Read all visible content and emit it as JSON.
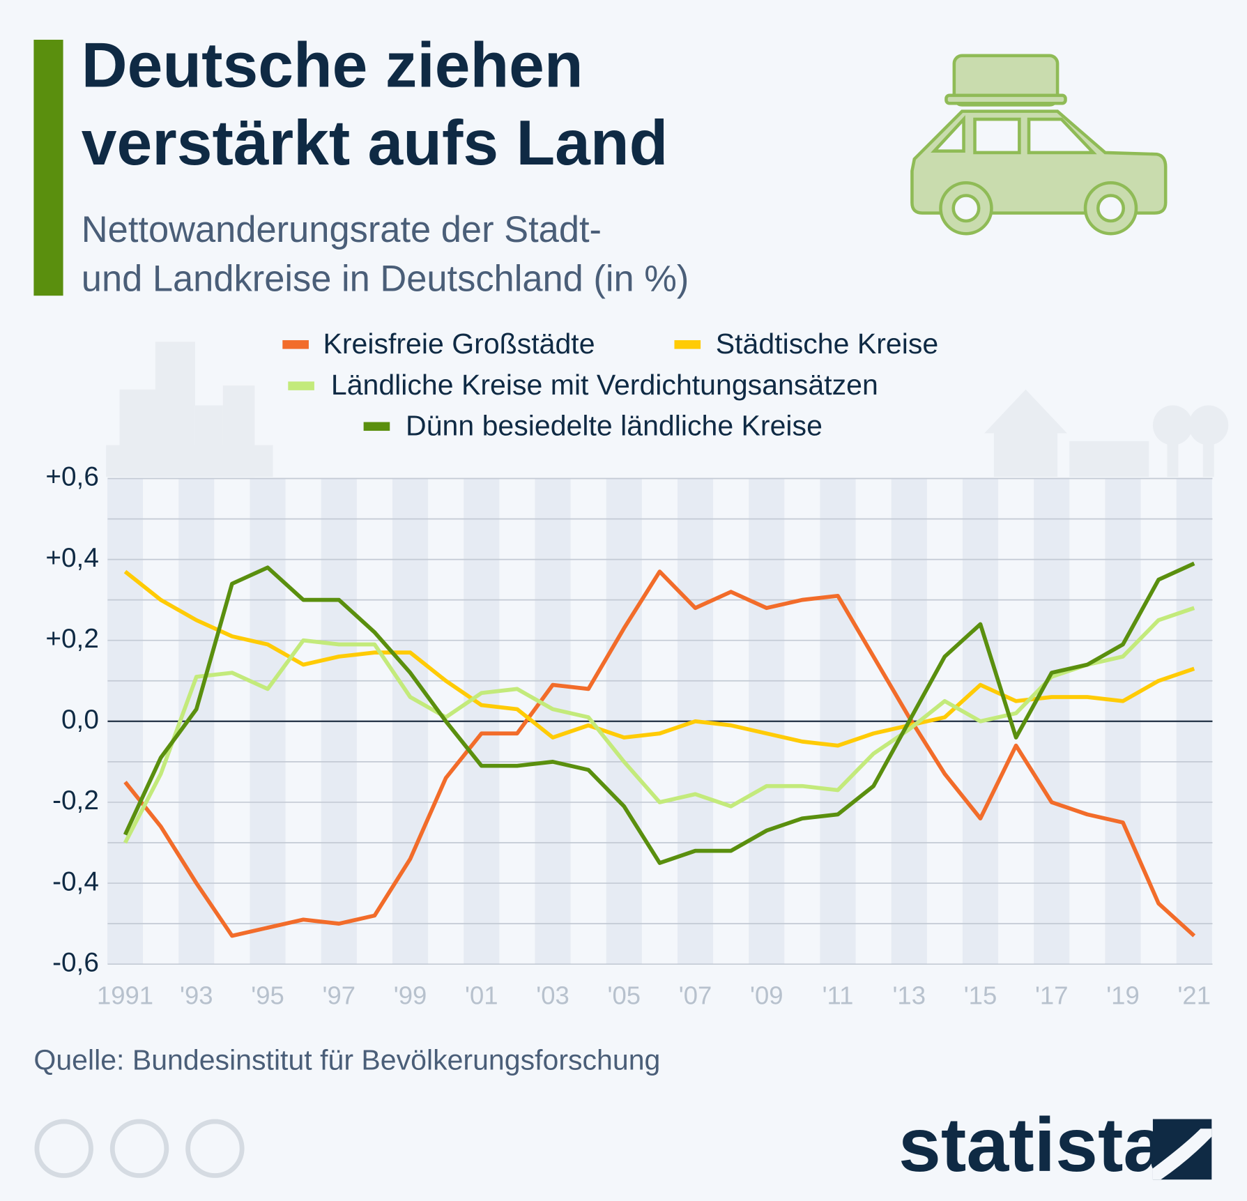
{
  "chart_data": {
    "type": "line",
    "title_lines": [
      "Deutsche ziehen",
      "verstärkt aufs Land"
    ],
    "subtitle_lines": [
      "Nettowanderungsrate der Stadt-",
      "und Landkreise in Deutschland (in %)"
    ],
    "categories": [
      "1991",
      null,
      "'93",
      null,
      "'95",
      null,
      "'97",
      null,
      "'99",
      null,
      "'01",
      null,
      "'03",
      null,
      "'05",
      null,
      "'07",
      null,
      "'09",
      null,
      "'11",
      null,
      "'13",
      null,
      "'15",
      null,
      "'17",
      null,
      "'19",
      null,
      "'21"
    ],
    "series": [
      {
        "name": "Kreisfreie Großstädte",
        "color": "#f26c2a",
        "values": [
          -0.15,
          -0.26,
          -0.4,
          -0.53,
          -0.51,
          -0.49,
          -0.5,
          -0.48,
          -0.34,
          -0.14,
          -0.03,
          -0.03,
          0.09,
          0.08,
          0.23,
          0.37,
          0.28,
          0.32,
          0.28,
          0.3,
          0.31,
          0.16,
          0.01,
          -0.13,
          -0.24,
          -0.06,
          -0.2,
          -0.23,
          -0.25,
          -0.45,
          -0.53
        ]
      },
      {
        "name": "Städtische Kreise",
        "color": "#ffcb05",
        "values": [
          0.37,
          0.3,
          0.25,
          0.21,
          0.19,
          0.14,
          0.16,
          0.17,
          0.17,
          0.1,
          0.04,
          0.03,
          -0.04,
          -0.01,
          -0.04,
          -0.03,
          0.0,
          -0.01,
          -0.03,
          -0.05,
          -0.06,
          -0.03,
          -0.01,
          0.01,
          0.09,
          0.05,
          0.06,
          0.06,
          0.05,
          0.1,
          0.13
        ]
      },
      {
        "name": "Ländliche Kreise mit Verdichtungsansätzen",
        "color": "#c3ea7b",
        "values": [
          -0.3,
          -0.13,
          0.11,
          0.12,
          0.08,
          0.2,
          0.19,
          0.19,
          0.06,
          0.01,
          0.07,
          0.08,
          0.03,
          0.01,
          -0.1,
          -0.2,
          -0.18,
          -0.21,
          -0.16,
          -0.16,
          -0.17,
          -0.08,
          -0.02,
          0.05,
          0.0,
          0.02,
          0.11,
          0.14,
          0.16,
          0.25,
          0.28
        ]
      },
      {
        "name": "Dünn besiedelte ländliche Kreise",
        "color": "#5a8f0e",
        "values": [
          -0.28,
          -0.09,
          0.03,
          0.34,
          0.38,
          0.3,
          0.3,
          0.22,
          0.12,
          0.0,
          -0.11,
          -0.11,
          -0.1,
          -0.12,
          -0.21,
          -0.35,
          -0.32,
          -0.32,
          -0.27,
          -0.24,
          -0.23,
          -0.16,
          0.0,
          0.16,
          0.24,
          -0.04,
          0.12,
          0.14,
          0.19,
          0.35,
          0.39
        ]
      }
    ],
    "ylim": [
      -0.6,
      0.6
    ],
    "yticks": [
      {
        "value": 0.6,
        "label": "+0,6"
      },
      {
        "value": 0.4,
        "label": "+0,4"
      },
      {
        "value": 0.2,
        "label": "+0,2"
      },
      {
        "value": 0,
        "label": "0,0"
      },
      {
        "value": -0.2,
        "label": "-0,2"
      },
      {
        "value": -0.4,
        "label": "-0,4"
      },
      {
        "value": -0.6,
        "label": "-0,6"
      }
    ],
    "minor_grid": [
      0.5,
      0.3,
      0.1,
      -0.1,
      -0.3,
      -0.5
    ],
    "grid": true,
    "source": "Quelle: Bundesinstitut für Bevölkerungsforschung",
    "brand": "statista"
  }
}
